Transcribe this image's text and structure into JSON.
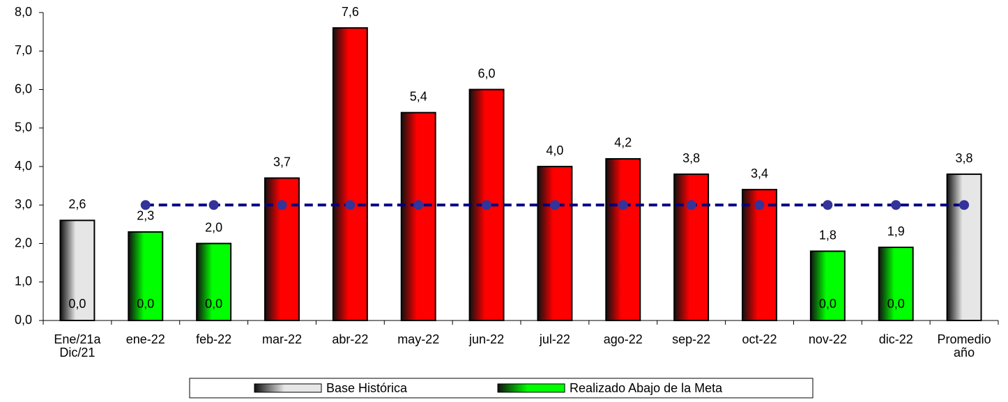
{
  "chart_data": {
    "type": "bar",
    "categories": [
      [
        "Ene/21a",
        "Dic/21"
      ],
      [
        "ene-22"
      ],
      [
        "feb-22"
      ],
      [
        "mar-22"
      ],
      [
        "abr-22"
      ],
      [
        "may-22"
      ],
      [
        "jun-22"
      ],
      [
        "jul-22"
      ],
      [
        "ago-22"
      ],
      [
        "sep-22"
      ],
      [
        "oct-22"
      ],
      [
        "nov-22"
      ],
      [
        "dic-22"
      ],
      [
        "Promedio",
        "año"
      ]
    ],
    "series": [
      {
        "name": "Base Histórica",
        "type": "bar",
        "color": "#e6e6e6",
        "values": [
          2.6,
          null,
          null,
          null,
          null,
          null,
          null,
          null,
          null,
          null,
          null,
          null,
          null,
          3.8
        ],
        "value_labels": [
          "2,6",
          null,
          null,
          null,
          null,
          null,
          null,
          null,
          null,
          null,
          null,
          null,
          null,
          "3,8"
        ]
      },
      {
        "name": "Realizado Abajo de la Meta",
        "type": "bar",
        "color": "#00ff00",
        "values": [
          null,
          2.3,
          2.0,
          null,
          null,
          null,
          null,
          null,
          null,
          null,
          null,
          1.8,
          1.9,
          null
        ],
        "value_labels": [
          null,
          "2,3",
          "2,0",
          null,
          null,
          null,
          null,
          null,
          null,
          null,
          null,
          "1,8",
          "1,9",
          null
        ]
      },
      {
        "type": "bar",
        "color": "#ff0000",
        "values": [
          null,
          null,
          null,
          3.7,
          7.6,
          5.4,
          6.0,
          4.0,
          4.2,
          3.8,
          3.4,
          null,
          null,
          null
        ],
        "value_labels": [
          null,
          null,
          null,
          "3,7",
          "7,6",
          "5,4",
          "6,0",
          "4,0",
          "4,2",
          "3,8",
          "3,4",
          null,
          null,
          null
        ]
      },
      {
        "type": "label",
        "color": "#000000",
        "values": [
          0,
          0,
          0,
          null,
          null,
          null,
          null,
          null,
          null,
          null,
          null,
          0,
          0,
          null
        ],
        "value_labels": [
          "0,0",
          "0,0",
          "0,0",
          null,
          null,
          null,
          null,
          null,
          null,
          null,
          null,
          "0,0",
          "0,0",
          null
        ]
      },
      {
        "type": "line",
        "color": "#000080",
        "marker_color": "#333399",
        "values": [
          null,
          3,
          3,
          3,
          3,
          3,
          3,
          3,
          3,
          3,
          3,
          3,
          3,
          3
        ]
      }
    ],
    "ylim": [
      0,
      8
    ],
    "yticks": [
      {
        "value": 0,
        "label": "0,0"
      },
      {
        "value": 1,
        "label": "1,0"
      },
      {
        "value": 2,
        "label": "2,0"
      },
      {
        "value": 3,
        "label": "3,0"
      },
      {
        "value": 4,
        "label": "4,0"
      },
      {
        "value": 5,
        "label": "5,0"
      },
      {
        "value": 6,
        "label": "6,0"
      },
      {
        "value": 7,
        "label": "7,0"
      },
      {
        "value": 8,
        "label": "8,0"
      }
    ],
    "legend": "bottom"
  }
}
